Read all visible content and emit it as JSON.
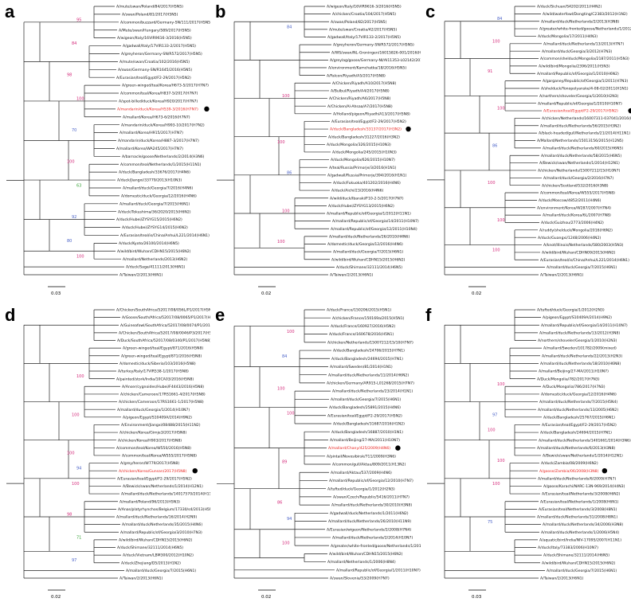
{
  "colors": {
    "highlight": "#e8231f",
    "bs_high": "#d4297a",
    "bs_mid": "#4a62c8",
    "bs_low": "#3aa33a",
    "marker": "#000000"
  },
  "panels": [
    {
      "letter": "a",
      "scale": "0.03",
      "hl_index": 14,
      "leaves": [
        "A/mute/swan/Poland/84/2017(H5N5)",
        "A/swan/Poland/81/2017(H5N5)",
        "A/common/buzzard/Germany-SN/111/2017(H5N5)",
        "A/Mute/swan/Hungary/589/2017(H5N5)",
        "A/wigeon/Italy/16VIR9616-3/2016(H5N5)",
        "A/gadwall/Italy/17VIR133-2/2017(H5N5)",
        "A/greyheron/Germany-SN/R572/2017(H5N5)",
        "A/mute/swan/Croatia/102/2016(H5N5)",
        "A/swan/Germany-SN/R1645/2016(H5N5)",
        "A/Eurasian/teal/Egypt/F2-29/2017(H5N2)",
        "A/green-winged/teal/Korea/H673-5/2017(H7N7)",
        "A/common/teal/Korea/H837-5/2017(H7N7)",
        "A/spot-billed/duck/Korea/H920/2017(H7N7)",
        "A/mandarin/duck/Korea/H539-3/2016(H7N7)",
        "A/mallard/Korea/H673-6/2016(H7N7)",
        "A/mandarin/duck/Korea/H993-10/2017(H7N2)",
        "A/mallard/Korea/H915/2017(H7N7)",
        "A/mandarin/duck/Korea/H887-3/2017(H7N7)",
        "A/mallard/Korea/WA245/2017(H7N7)",
        "A/barnacle/goose/Netherlands/2/2014(H3N6)",
        "A/common/teal/Netherlands/1/2015(H11N1)",
        "A/duck/Bangladesh/33676/2017(H4N6)",
        "A/duck/Jiangxi/33779/2013(H10N3)",
        "A/mallard/duck/Georgia/7/2016(H4N6)",
        "A/domestic/duck/Georgia/12/2016(H4N6)",
        "A/mallard/duck/Georgia/7/2015(H6N1)",
        "A/duck/Tokushima/36/2020/2015(H6N2)",
        "A/duck/Hubei/ZYSYG15/2015(H6N2)",
        "A/duck/Hubei/ZYSYG14/2015(H6N2)",
        "A/Eurasian/teal/is/China/Anhui/L221/2014(H6N1)",
        "A/duck/Kyoto/26100/2014(H6N5)",
        "A/wild/bird/Wuhan/CDHN15/2015(H6N2)",
        "A/mallard/Netherlands/2013(H6N2)",
        "A/duck/Saga/41111/2013(H6N1)",
        "A/Taiwan/2/2013(H6N1)"
      ],
      "bootstraps": [
        {
          "value": "95",
          "level": "high",
          "leaf": 2
        },
        {
          "value": "84",
          "level": "high",
          "leaf": 5
        },
        {
          "value": "98",
          "level": "high",
          "leaf": 9
        },
        {
          "value": "100",
          "level": "high",
          "leaf": 12
        },
        {
          "value": "70",
          "level": "mid",
          "leaf": 16
        },
        {
          "value": "100",
          "level": "high",
          "leaf": 20
        },
        {
          "value": "63",
          "level": "low",
          "leaf": 23
        },
        {
          "value": "92",
          "level": "mid",
          "leaf": 27
        },
        {
          "value": "80",
          "level": "mid",
          "leaf": 30
        },
        {
          "value": "100",
          "level": "high",
          "leaf": 32
        }
      ]
    },
    {
      "letter": "b",
      "scale": "0.02",
      "hl_index": 17,
      "leaves": [
        "A/wigeon/Italy/16VIR9616-3/2016(H5N5)",
        "A/chicken/Croatia/104/2017(H5N5)",
        "A/swan/Poland/82/2017(H5N5)",
        "A/mute/swan/Croatia/42/2017(H5N5)",
        "A/gadwall/Italy/17VIR133-2/2017(H5N5)",
        "A/greyheron/Germany-SN/R572/2017(H5N5)",
        "A/WS/swan/NL-Groningen/16015826-001/2016(H5N5)",
        "A/greylag/goose/Germany-NI/AI11353-L02142/2016(H5N5)",
        "A/environment/Kamchatka/18/2016(H5N5)",
        "A/Falcon/Riyadh/A5/2017(H5N8)",
        "A/Chicken/Riyadh/A10/2017(H5N8)",
        "A/Bulbul/Riyadh/A4/2017(H5N8)",
        "A/Chicken/Riyadh/A6/2017(H5N8)",
        "A/Chicken/Al-Ahsaa/A7/2017(H5N8)",
        "A/Holland/pigeon/Riyadh/A13/2017(H5N8)",
        "A/Eurasian/teal/Egypt/F2-29/2017(H5N2)",
        "A/duck/Bangladesh/33137/2017(H3N2)",
        "A/duck/Bangladesh/31227/2016(H3N2)",
        "A/duck/Mongolia/326/2015(H10N3)",
        "A/duck/Mongolia/245/2015(H10N3)",
        "A/duck/Mongolia/626/2015(H10N7)",
        "A/teal/Russia/Primorje/3/2016(H1N1)",
        "A/gadwall/Russia/Primorje/394/2016(H1N1)",
        "A/duck/Fukuoka/401202/2016(H4N6)",
        "A/duck/Aichi/23/2016(H4N6)",
        "A/wild/duck/Ibaraki/F10-2-5/2017(H7N7)",
        "A/duck/Hubei/ZYSYG13/2015(H6N2)",
        "A/mallard/Republic/of/Georgia/1/2012(H11N1)",
        "A/mallard/Republic/of/Georgia/14/2011(H10N7)",
        "A/mallard/Republic/of/Georgia/12/2011(H10N4)",
        "A/mallard/duck/Netherlands/26/2010(H4N6)",
        "A/domestic/duck/Georgia/12/2016(H4N6)",
        "A/mallard/duck/Georgia/7/2015(H6N1)",
        "A/wild/bird/Wuhan/CDHN15/2015(H6N2)",
        "A/duck/Shimane/32111/2014(H6N5)",
        "A/Taiwan/2/2013(H6N1)"
      ],
      "bootstraps": [
        {
          "value": "84",
          "level": "mid",
          "leaf": 3
        },
        {
          "value": "100",
          "level": "high",
          "leaf": 12
        },
        {
          "value": "100",
          "level": "high",
          "leaf": 18
        },
        {
          "value": "86",
          "level": "mid",
          "leaf": 22
        },
        {
          "value": "100",
          "level": "high",
          "leaf": 27
        },
        {
          "value": "100",
          "level": "high",
          "leaf": 31
        }
      ]
    },
    {
      "letter": "c",
      "scale": "0.02",
      "hl_index": 15,
      "leaves": [
        "A/duck/Sichuan/S4202/2011(H4N2)",
        "A/wild/waterfowl/Dongting/C2383/2012(H1N2)",
        "A/mallard/duck/Netherlands/2/2013(H3N8)",
        "A/greater/white-fronted/goose/Netherlands/1/2012(H1N1)",
        "A/duck/Mongolia/17/2011(H4N3)",
        "A/mallard/duck/Netherlands/13/2013(H7N7)",
        "A/mallard/duck/Georgia/3/2012(H7N3)",
        "A/common/shelduck/Mongolia/2187/2011(H5N3)",
        "A/wild/bird/Mongolia/2396/2011(H5N3)",
        "A/mallard/Republic/of/Georgia/1/2010(H6N2)",
        "A/garganey/Republic/of/Georgia/1/2011(H7N3)",
        "A/shelduck/Yonopolyanske/4-08-02/2011(H1N1)",
        "A/northern/shoveler/Georgia/1/2010(H2N3)",
        "A/mallard/Republic/of/Georgia/1/2010(H10N7)",
        "A/Eurasian/teal/Egypt/F2-29/2017(H5N2)",
        "A/chicken/Netherlands/16007311-037041/2016(H7N9)",
        "A/mallard/duck/Netherlands/56/2015(H3N2)",
        "A/black-headed/gull/Netherlands/21/2014(H11N1)",
        "A/Mallard/Netherlands/15013156/2015(H12N5)",
        "A/mallard/duck/Netherlands/60/2015(H6N5)",
        "A/mallard/duck/Netherlands/58/2015(H6N5)",
        "A/Bewick/swan/Netherlands/1/2014(H12N1)",
        "A/chicken/Netherlands/15007212/15(H10N7)",
        "A/mallard/duck/Georgia/2/2016(H7N7)",
        "A/chicken/Scotland/532/2016(H3N8)",
        "A/common/teal/Korea/W555/2017(H5N8)",
        "A/duck/Moscow/4852/2011(H4N6)",
        "A/environment/Korea/W287/2007(H7N4)",
        "A/mallard/duck/Korea/6L/2007(H7N8)",
        "A/duck/Guizhou/2773/2006(H4N2)",
        "A/ruddy/shelduck/Mongolia/2016(H6N2)",
        "A/duck/Guangxi/1248/2006(H4N2)",
        "A/knot/Illinois/Netherlands/580/2003(H5N3)",
        "A/wild/bird/Wuhan/CDHN09/2015(H6N2)",
        "A/Eurasian/teal/is/China/Anhui/L221/2014(H6N1)",
        "A/mallard/duck/Georgia/7/2015(H6N1)",
        "A/Taiwan/2/2013(H6N1)"
      ],
      "bootstraps": [
        {
          "value": "84",
          "level": "mid",
          "leaf": 2
        },
        {
          "value": "100",
          "level": "high",
          "leaf": 5
        },
        {
          "value": "91",
          "level": "high",
          "leaf": 9
        },
        {
          "value": "100",
          "level": "high",
          "leaf": 14
        },
        {
          "value": "86",
          "level": "mid",
          "leaf": 19
        },
        {
          "value": "100",
          "level": "high",
          "leaf": 24
        },
        {
          "value": "100",
          "level": "high",
          "leaf": 29
        },
        {
          "value": "100",
          "level": "high",
          "leaf": 33
        }
      ]
    },
    {
      "letter": "d",
      "scale": "0.02",
      "hl_index": 22,
      "leaves": [
        "A/Chicken/SouthAfrica/52017/08/056L/P1/2017(H5N8)",
        "A/Goose/South/Africa/52017/08/0065/P1/2017(H5N8)",
        "A/Guineafowl/SouthAfrica/52017/08/0074/P1/2017(H5N8)",
        "A/Chicken/SouthAfrica/52017/08/0046/P3/2017(H5N8)",
        "A/Duck/SouthAfrica/52017/08/0340/P1/2017(H5N8)",
        "A/green-winged/teal/Egypt/871/2016(H5N8)",
        "A/green-winged/teal/Egypt/871/2016(H5N8)",
        "A/domestic/duck/Siberia/103/2016(H5N8)",
        "A/turkey/Italy/17VIR538-1/2017(H5N8)",
        "A/painted/stork/India/10CA03/2016(H5N8)",
        "A/Anser/cygnoides/Hubei/F4443/2016(H5N8)",
        "A/chicken/Cameroon/17RS1661-4/2017(H5N8)",
        "A/chicken/Cameroon/17RS1661-1/2017(H5N8)",
        "A/mallard/duck/Georgia/1/2014(H10N7)",
        "A/pigeon/Egypt/S10409A/2014(H9N2)",
        "A/Environment/Jiangxi/08488/2015(H11N2)",
        "A/chicken/Korea/Gimje3/2017(H5N8)",
        "A/chicken/Korea/H903/2017(H5N8)",
        "A/common/teal/Korea/W550/2016(H5N8)",
        "A/common/teal/Korea/W555/2017(H5N8)",
        "A/grey/heron/W779/2017(H5N8)",
        "A/chicken/Korea/Gunsan/2017(H5N8)",
        "A/Eurasian/teal/Egypt/F2-29/2017(H5N2)",
        "A/Bewick/swan/Netherlands/1/2014(H12N1)",
        "A/mallard/duck/Netherlands/14017570/2014(H11N9)",
        "A/mallard/Poland/96/2013(H5N3)",
        "A/Anas/platyrhynchos/Belgium/17330/s4/2013(H5N2)",
        "A/mallard/duck/Netherlands/16/2014(H2N9)",
        "A/mallard/duck/Netherlands/35/2015(H4N6)",
        "A/mallard/Republic/of/Georgia/3/2010(H7N3)",
        "A/wild/bird/Wuhan/CDHN15/2015(H6N2)",
        "A/duck/Shimane/32111/2014(H6N5)",
        "A/duck/Vietnam/LBM300/2012(H10N2)",
        "A/duck/Zhejiang/D5/2013(H1N2)",
        "A/mallard/duck/Georgia/7/2015(H6N1)",
        "A/Taiwan/2/2013(H6N1)"
      ],
      "bootstraps": [
        {
          "value": "100",
          "level": "high",
          "leaf": 9
        },
        {
          "value": "100",
          "level": "high",
          "leaf": 14
        },
        {
          "value": "100",
          "level": "high",
          "leaf": 19
        },
        {
          "value": "94",
          "level": "mid",
          "leaf": 21
        },
        {
          "value": "100",
          "level": "high",
          "leaf": 23
        },
        {
          "value": "98",
          "level": "high",
          "leaf": 27
        },
        {
          "value": "71",
          "level": "low",
          "leaf": 30
        },
        {
          "value": "97",
          "level": "mid",
          "leaf": 33
        }
      ]
    },
    {
      "letter": "e",
      "scale": "0.02",
      "hl_index": 18,
      "leaves": [
        "A/duck/France/150206/2015(H5N1)",
        "A/chicken/France/150169a/2015(H5N1)",
        "A/duck/France/160927/2016(H5N2)",
        "A/duck/France/160678/2016(H5N1)",
        "A/chicken/Netherlands/15007212/15/10(H7N7)",
        "A/duck/Bangladesh/24706/2015(H7N1)",
        "A/duck/Bangladesh/24694/2015(H7N1)",
        "A/mallard/Sweden/81/2014(H1N1)",
        "A/mallard/duck/Netherlands/11/2014(H6N2)",
        "A/chicken/Germany/AR915-L01268/2015(H7N7)",
        "A/mallard/duck/Netherlands/23/2014(H1N1)",
        "A/mallard/duck/Georgia/7/2015(H6N1)",
        "A/duck/Bangladesh/25891/2015(H4N6)",
        "A/Eurasian/teal/Egypt/F2-29/2017(H5N2)",
        "A/duck/Bangladesh/31687/2016(H1N2)",
        "A/duck/Bangladesh/16887/2010(H1N1)",
        "A/mallard/Beijing/27-MA/2011(H10N7)",
        "A/mallard/Chany/425/2009(H4N6)",
        "A/pintail/Novosibirsk/711/2009(H3N6)",
        "A/common/gull/Aktau/809/2011(H13N2)",
        "A/mallard/Aktau/537/2009(H4N6)",
        "A/mallard/Republic/of/Georgia/12/2010(H7N7)",
        "A/tufted/duck/Georgia/1/2012(H2N3)",
        "A/swan/Czech/Republic/5416/2011(H7N7)",
        "A/mallard/duck/Netherlands/30/2010(H3N8)",
        "A/gadwall/duck/Netherlands/1/2011(H6N2)",
        "A/mallard/duck/Netherlands/26/2010(H11N9)",
        "A/Eurasian/wigeon/Netherlands/2/2008(H7N4)",
        "A/mallard/duck/Netherlands/2/2014(H10N7)",
        "A/greater/white-fronted/goose/Netherlands/1/2010(H6N1)",
        "A/wild/bird/Wuhan/CDHN15/2015(H6N2)",
        "A/mallard/Netherlands/1/2006(H8N4)",
        "A/mallard/Republic/of/Georgia/1/2011(H10N7)",
        "A/swan/Slovenia/53/2009(H7N7)"
      ],
      "bootstraps": [
        {
          "value": "100",
          "level": "high",
          "leaf": 3
        },
        {
          "value": "84",
          "level": "mid",
          "leaf": 6
        },
        {
          "value": "100",
          "level": "high",
          "leaf": 10
        },
        {
          "value": "100",
          "level": "high",
          "leaf": 13
        },
        {
          "value": "89",
          "level": "high",
          "leaf": 19
        },
        {
          "value": "86",
          "level": "high",
          "leaf": 24
        },
        {
          "value": "94",
          "level": "mid",
          "leaf": 26
        },
        {
          "value": "100",
          "level": "high",
          "leaf": 29
        }
      ]
    },
    {
      "letter": "f",
      "scale": "0.03",
      "hl_index": 22,
      "leaves": [
        "A/tufted/duck/Georgia/1/2012(H2N3)",
        "A/pigeon/Egypt/S10409A/2014(H9N2)",
        "A/mallard/Republic/of/Georgia/14/2011(H10N7)",
        "A/mallard/duck/Netherlands/13/2012(H3N8)",
        "A/northern/shoveler/Georgia/1/2010(H2N3)",
        "A/mallard/Sweden/101782/2009(mixed)",
        "A/mallard/duck/Netherlands/22/2013(H2N3)",
        "A/mallard/duck/Netherlands/18/2010(H6N8)",
        "A/mallard/Beijing/27-MA/2011(H10N7)",
        "A/Duck/Mongolia/782/2017(H7N3)",
        "A/Duck/Mongolia/786/2017(H7N3)",
        "A/domestic/duck/Georgia/12/2016(H4N6)",
        "A/mallard/duck/Netherlands/7/2015(H5N4)",
        "A/mallard/duck/Netherlands/13/2005(H6N2)",
        "A/duck/Bangladesh/25767/2015(H6N1)",
        "A/Eurasian/teal/Egypt/F2-29/2017(H5N2)",
        "A/duck/Bangladesh/24694/2015(H7N1)",
        "A/mallard/duck/Netherlands/1401661/2014(H3N6)",
        "A/mallard/duck/Netherlands/6/2013(H3N8)",
        "A/Bewick/swan/Netherlands/1/2014(H12N1)",
        "A/duck/Zambia/08/2009(H6N2)",
        "A/goose/Zambia/06/2008(H3N8)",
        "A/mallard/duck/Netherlands/6/2009(H7N7)",
        "A/goose/Karachi/NARC-13N-969/2014(H4N3)",
        "A/Eurasian/teal/Netherlands/3/2008(H6N2)",
        "A/Eurasian/teal/Netherlands/1/2008(H6N1)",
        "A/Eurasian/teal/Netherlands/3/2008(H8N1)",
        "A/mallard/duck/Netherlands/31/2008(H8N1)",
        "A/mallard/duck/Netherlands/34/2006(H3N8)",
        "A/mallard/duck/Netherlands/1/2006(H5N4)",
        "A/aquatic/bird/India/NIV-17095/2007(H11N1)",
        "A/duck/Italy/73383/2006(H10N7)",
        "A/duck/Shimane/32111/2014(H6N5)",
        "A/wild/bird/Wuhan/CDHN15/2015(H6N2)",
        "A/mallard/duck/Georgia/7/2015(H6N1)",
        "A/Taiwan/2/2013(H6N1)"
      ],
      "bootstraps": [
        {
          "value": "100",
          "level": "high",
          "leaf": 10
        },
        {
          "value": "97",
          "level": "mid",
          "leaf": 14
        },
        {
          "value": "100",
          "level": "high",
          "leaf": 16
        },
        {
          "value": "100",
          "level": "high",
          "leaf": 20
        },
        {
          "value": "100",
          "level": "high",
          "leaf": 23
        },
        {
          "value": "75",
          "level": "mid",
          "leaf": 28
        }
      ]
    }
  ]
}
